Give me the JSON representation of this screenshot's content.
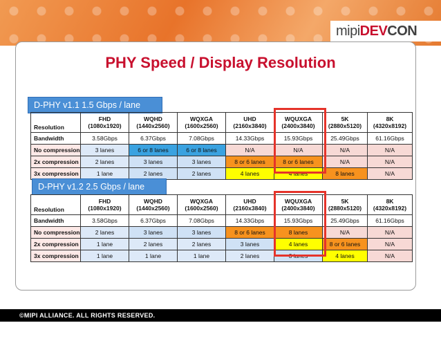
{
  "logo": {
    "mipi": "mipi",
    "dev": "DEV",
    "con": "CON"
  },
  "title": "PHY Speed / Display Resolution",
  "footer": "©MIPI ALLIANCE. ALL RIGHTS RESERVED.",
  "colors": {
    "accent_red": "#c8102e",
    "highlight_border": "#e5332a",
    "label_blue": "#4a8fd6",
    "orange": "#f7921e",
    "yellow": "#ffff00",
    "blue": "#3aa2e0"
  },
  "tables": [
    {
      "label": "D-PHY v1.1   1.5 Gbps / lane",
      "header": [
        {
          "name": "Resolution",
          "detail": ""
        },
        {
          "name": "FHD",
          "detail": "(1080x1920)"
        },
        {
          "name": "WQHD",
          "detail": "(1440x2560)"
        },
        {
          "name": "WQXGA",
          "detail": "(1600x2560)"
        },
        {
          "name": "UHD",
          "detail": "(2160x3840)"
        },
        {
          "name": "WQUXGA",
          "detail": "(2400x3840)"
        },
        {
          "name": "5K",
          "detail": "(2880x5120)"
        },
        {
          "name": "8K",
          "detail": "(4320x8192)"
        }
      ],
      "rows": [
        {
          "label": "Bandwidth",
          "cells": [
            "3.58Gbps",
            "6.37Gbps",
            "7.08Gbps",
            "14.33Gbps",
            "15.93Gbps",
            "25.49Gbps",
            "61.16Gbps"
          ]
        },
        {
          "label": "No compression",
          "cells": [
            "3 lanes",
            "6 or 8 lanes",
            "6 or 8 lanes",
            "N/A",
            "N/A",
            "N/A",
            "N/A"
          ]
        },
        {
          "label": "2x compression",
          "cells": [
            "2 lanes",
            "3 lanes",
            "3 lanes",
            "8 or 6 lanes",
            "8 or 6 lanes",
            "N/A",
            "N/A"
          ]
        },
        {
          "label": "3x compression",
          "cells": [
            "1 lane",
            "2 lanes",
            "2 lanes",
            "4 lanes",
            "4 lanes",
            "8 lanes",
            "N/A"
          ]
        }
      ]
    },
    {
      "label": "D-PHY v1.2   2.5 Gbps / lane",
      "header": [
        {
          "name": "Resolution",
          "detail": ""
        },
        {
          "name": "FHD",
          "detail": "(1080x1920)"
        },
        {
          "name": "WQHD",
          "detail": "(1440x2560)"
        },
        {
          "name": "WQXGA",
          "detail": "(1600x2560)"
        },
        {
          "name": "UHD",
          "detail": "(2160x3840)"
        },
        {
          "name": "WQUXGA",
          "detail": "(2400x3840)"
        },
        {
          "name": "5K",
          "detail": "(2880x5120)"
        },
        {
          "name": "8K",
          "detail": "(4320x8192)"
        }
      ],
      "rows": [
        {
          "label": "Bandwidth",
          "cells": [
            "3.58Gbps",
            "6.37Gbps",
            "7.08Gbps",
            "14.33Gbps",
            "15.93Gbps",
            "25.49Gbps",
            "61.16Gbps"
          ]
        },
        {
          "label": "No compression",
          "cells": [
            "2 lanes",
            "3 lanes",
            "3 lanes",
            "8 or 6 lanes",
            "8 lanes",
            "N/A",
            "N/A"
          ]
        },
        {
          "label": "2x compression",
          "cells": [
            "1 lane",
            "2 lanes",
            "2 lanes",
            "3 lanes",
            "4 lanes",
            "8 or 6 lanes",
            "N/A"
          ]
        },
        {
          "label": "3x compression",
          "cells": [
            "1 lane",
            "1 lane",
            "1 lane",
            "2 lanes",
            "3 lanes",
            "4 lanes",
            "N/A"
          ]
        }
      ]
    }
  ]
}
